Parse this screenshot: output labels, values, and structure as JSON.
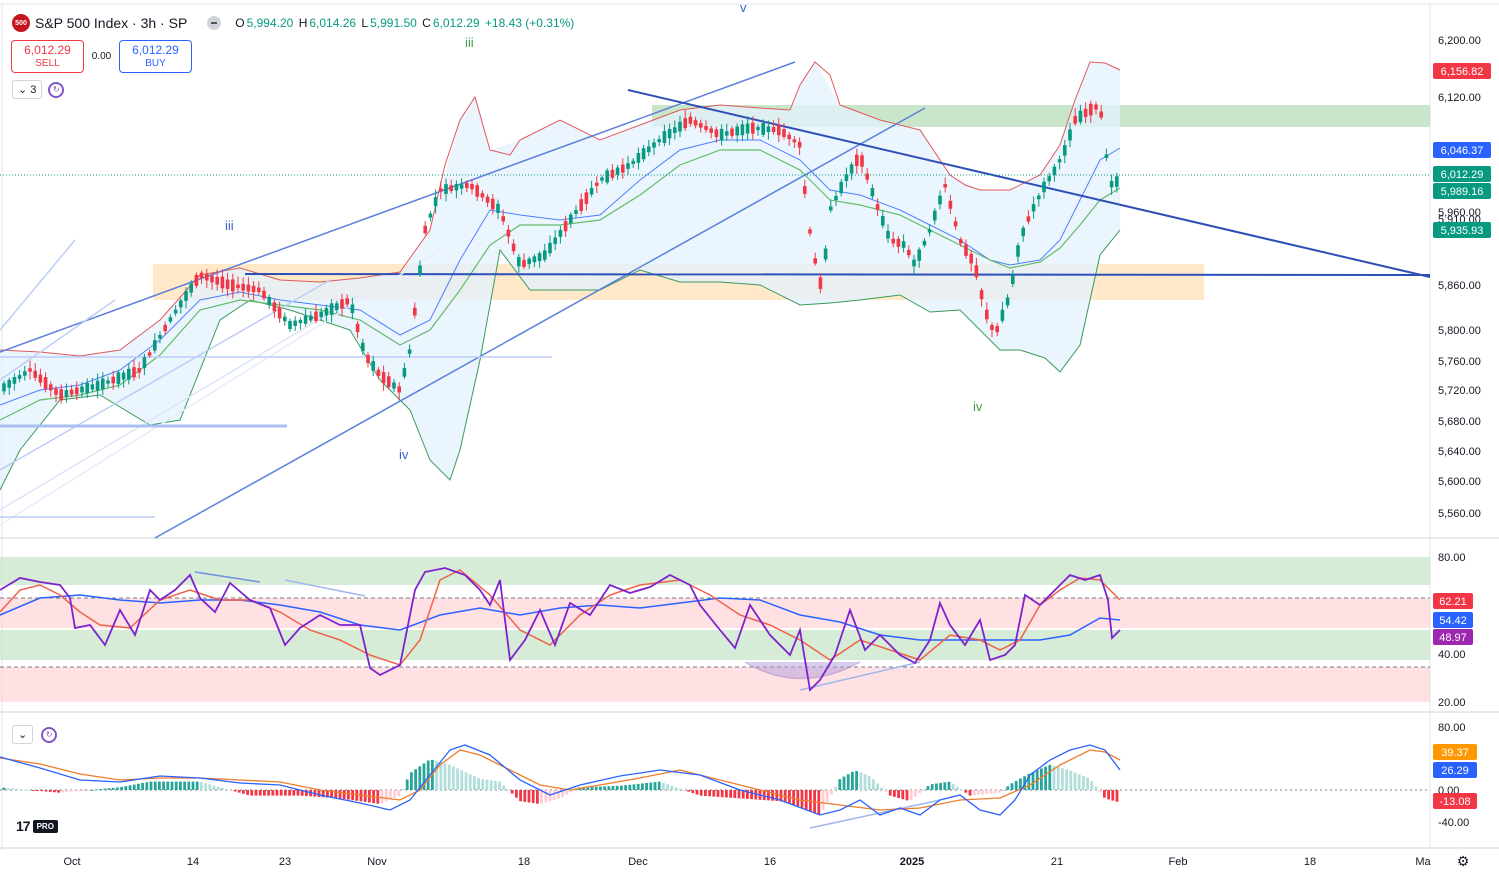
{
  "header": {
    "logo_text": "500",
    "symbol": "S&P 500 Index · 3h · SP",
    "ohlc": {
      "o_label": "O",
      "o": "5,994.20",
      "h_label": "H",
      "h": "6,014.26",
      "l_label": "L",
      "l": "5,991.50",
      "c_label": "C",
      "c": "6,012.29",
      "change": "+18.43 (+0.31%)"
    }
  },
  "trade": {
    "sell_price": "6,012.29",
    "sell_label": "SELL",
    "spread": "0.00",
    "buy_price": "6,012.29",
    "buy_label": "BUY"
  },
  "indicator_count": "3",
  "colors": {
    "up": "#089981",
    "down": "#f23645",
    "trend": "#2f4fb8",
    "bb_upper": "#e0585b",
    "bb_lower": "#3a9a5c",
    "bb_basis": "#2962ff",
    "rsi": "#7e22ce",
    "rsi_ma": "#f0614a",
    "rsi_slow": "#2962ff",
    "macd": "#2962ff",
    "signal": "#ef7d2b"
  },
  "icons": {
    "eye": "chevron-down-icon",
    "refresh": "refresh-icon",
    "settings": "gear-icon"
  },
  "price_axis": {
    "ticks": [
      "6,200.00",
      "6,120.00",
      "6,046.37",
      "6,012.29",
      "5,989.16",
      "5,960.00",
      "5,935.93",
      "5,910.00",
      "5,860.00",
      "5,800.00",
      "5,760.00",
      "5,720.00",
      "5,680.00",
      "5,640.00",
      "5,600.00",
      "5,560.00"
    ],
    "high_label": "6,156.82"
  },
  "price_tags": [
    {
      "text": "6,156.82",
      "color": "#f23645"
    },
    {
      "text": "6,046.37",
      "color": "#2962ff"
    },
    {
      "text": "6,012.29",
      "color": "#089981"
    },
    {
      "text": "5,989.16",
      "color": "#089981"
    },
    {
      "text": "5,935.93",
      "color": "#089981"
    }
  ],
  "rsi_axis": {
    "ticks": [
      "80.00",
      "40.00",
      "20.00"
    ]
  },
  "rsi_tags": [
    {
      "text": "62.21",
      "color": "#f23645"
    },
    {
      "text": "54.42",
      "color": "#2962ff"
    },
    {
      "text": "48.97",
      "color": "#9c27b0"
    }
  ],
  "macd_axis": {
    "ticks": [
      "80.00",
      "0.00",
      "-40.00"
    ]
  },
  "macd_tags": [
    {
      "text": "39.37",
      "color": "#ff9800"
    },
    {
      "text": "26.29",
      "color": "#2962ff"
    },
    {
      "text": "-13.08",
      "color": "#f23645"
    }
  ],
  "time_axis": [
    "Oct",
    "14",
    "23",
    "Nov",
    "18",
    "Dec",
    "16",
    "2025",
    "21",
    "Feb",
    "18",
    "Ma"
  ],
  "wave_labels": [
    "iii",
    "iii",
    "iv",
    "v",
    "iv"
  ],
  "brand": {
    "tv": "17",
    "pro": "PRO"
  }
}
